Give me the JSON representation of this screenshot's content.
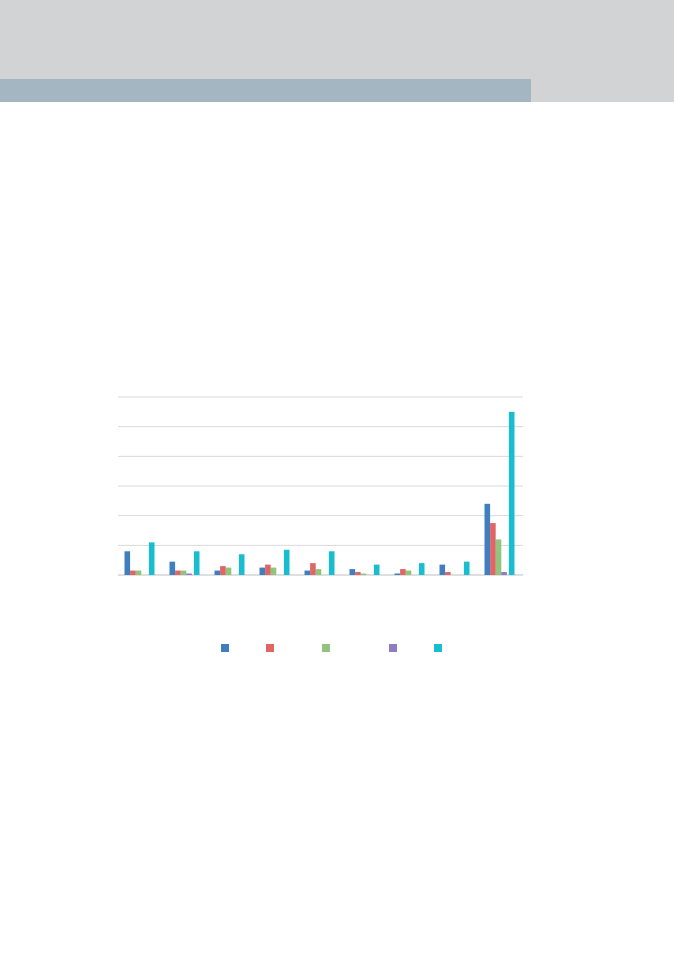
{
  "colors": {
    "header_band": "#d1d3d4",
    "header_accent": "#a3b6c2",
    "grid": "#d9d9d9",
    "axis": "#bfbfbf"
  },
  "chart_data": {
    "type": "bar",
    "title": "",
    "xlabel": "",
    "ylabel": "",
    "categories": [
      "",
      "",
      "",
      "",
      "",
      "",
      "",
      "",
      ""
    ],
    "ylim": [
      0,
      60
    ],
    "grid": true,
    "legend_position": "bottom",
    "series": [
      {
        "color": "#3f7fbf",
        "values": [
          8,
          4.5,
          1.5,
          2.5,
          1.5,
          2,
          0.5,
          3.5,
          24
        ]
      },
      {
        "color": "#e06666",
        "values": [
          1.5,
          1.5,
          3,
          3.5,
          4,
          1,
          2,
          1,
          17.5
        ]
      },
      {
        "color": "#93c47d",
        "values": [
          1.5,
          1.5,
          2.5,
          2.5,
          2,
          0.5,
          1.5,
          0,
          12
        ]
      },
      {
        "color": "#8e7cc3",
        "values": [
          0,
          0.5,
          0,
          0,
          0,
          0,
          0,
          0,
          1
        ]
      },
      {
        "color": "#17becf",
        "values": [
          11,
          8,
          7,
          8.5,
          8,
          3.5,
          4,
          4.5,
          55
        ]
      }
    ]
  }
}
